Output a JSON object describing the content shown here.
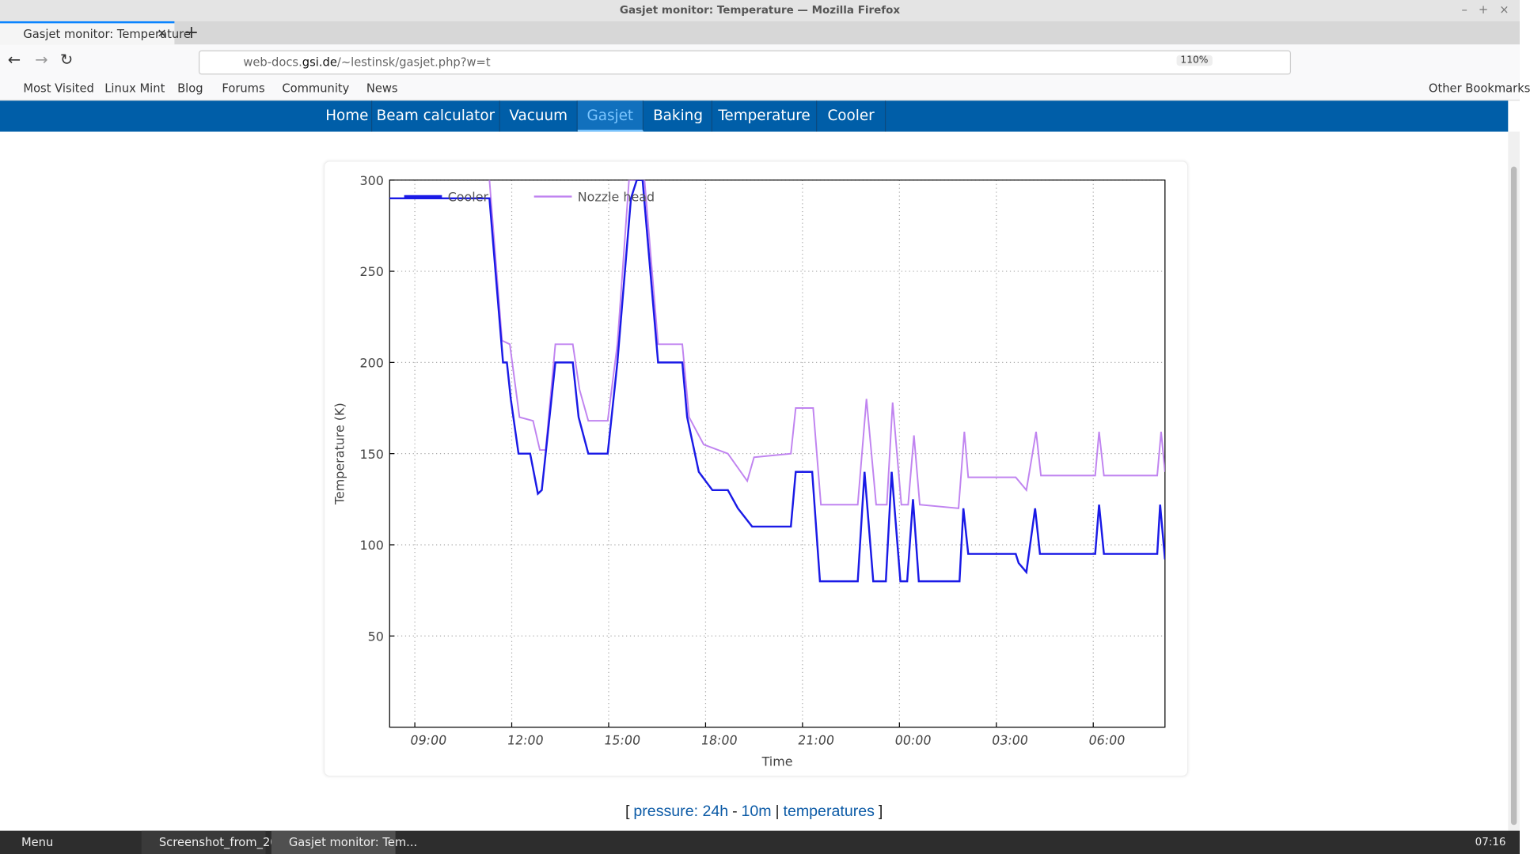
{
  "window_title": "Gasjet monitor: Temperature — Mozilla Firefox",
  "tab": {
    "title": "Gasjet monitor: Temperature"
  },
  "url": {
    "prefix": "web-docs.",
    "domain": "gsi.de",
    "path": "/~lestinsk/gasjet.php?w=t",
    "zoom": "110%"
  },
  "bookmarks": {
    "items": [
      "Most Visited",
      "Linux Mint",
      "Blog",
      "Forums",
      "Community",
      "News"
    ],
    "other": "Other Bookmarks"
  },
  "nav": [
    "Home",
    "Beam calculator",
    "Vacuum",
    "Gasjet",
    "Baking",
    "Temperature",
    "Cooler"
  ],
  "footer": [
    "[",
    "pressure: 24h",
    "-",
    "10m",
    "|",
    "temperatures",
    "]"
  ],
  "taskbar": {
    "menu": "Menu",
    "windows": [
      "Screenshot_from_20...",
      "Gasjet monitor: Tem..."
    ],
    "clock": "07:16"
  },
  "chart_data": {
    "type": "line",
    "xlabel": "Time",
    "ylabel": "Temperature (K)",
    "xlim": [
      8.22,
      32.22
    ],
    "ylim": [
      0,
      300
    ],
    "xticks": [
      {
        "value": 9,
        "label": "09:00"
      },
      {
        "value": 12,
        "label": "12:00"
      },
      {
        "value": 15,
        "label": "15:00"
      },
      {
        "value": 18,
        "label": "18:00"
      },
      {
        "value": 21,
        "label": "21:00"
      },
      {
        "value": 24,
        "label": "00:00"
      },
      {
        "value": 27,
        "label": "03:00"
      },
      {
        "value": 30,
        "label": "06:00"
      }
    ],
    "yticks": [
      50,
      100,
      150,
      200,
      250,
      300
    ],
    "grid": true,
    "legend": "upper left",
    "series": [
      {
        "name": "Cooler",
        "color": "#1a1ae6",
        "x": [
          8.22,
          11.31,
          11.73,
          11.85,
          11.97,
          12.21,
          12.57,
          12.81,
          12.93,
          13.35,
          13.89,
          14.07,
          14.37,
          14.97,
          15.27,
          15.69,
          15.87,
          16.05,
          16.53,
          17.28,
          17.43,
          17.79,
          18.21,
          18.69,
          19.0,
          19.44,
          20.64,
          20.79,
          21.3,
          21.54,
          22.71,
          22.92,
          23.19,
          23.58,
          23.76,
          24.03,
          24.24,
          24.42,
          24.6,
          25.86,
          25.98,
          26.13,
          27.6,
          27.69,
          27.93,
          28.2,
          28.35,
          30.06,
          30.18,
          30.33,
          31.98,
          32.07,
          32.22
        ],
        "values": [
          290,
          290,
          200,
          200,
          180,
          150,
          150,
          128,
          130,
          200,
          200,
          170,
          150,
          150,
          200,
          290,
          300,
          300,
          200,
          200,
          170,
          140,
          130,
          130,
          120,
          110,
          110,
          140,
          140,
          80,
          80,
          140,
          80,
          80,
          140,
          80,
          80,
          125,
          80,
          80,
          120,
          95,
          95,
          90,
          85,
          120,
          95,
          95,
          122,
          95,
          95,
          122,
          92
        ]
      },
      {
        "name": "Nozzle head",
        "color": "#c084f0",
        "x": [
          11.31,
          11.7,
          11.94,
          12.24,
          12.66,
          12.87,
          13.05,
          13.35,
          13.89,
          14.1,
          14.37,
          14.97,
          15.27,
          15.63,
          16.11,
          16.53,
          17.28,
          17.49,
          17.94,
          18.69,
          19.29,
          19.5,
          20.64,
          20.79,
          21.33,
          21.57,
          22.71,
          22.98,
          23.28,
          23.61,
          23.79,
          24.06,
          24.27,
          24.45,
          24.63,
          25.83,
          26.01,
          26.13,
          27.6,
          27.93,
          28.23,
          28.38,
          30.06,
          30.18,
          30.33,
          31.98,
          32.1,
          32.22
        ],
        "values": [
          300,
          212,
          210,
          170,
          168,
          152,
          152,
          210,
          210,
          185,
          168,
          168,
          210,
          300,
          300,
          210,
          210,
          170,
          155,
          150,
          135,
          148,
          150,
          175,
          175,
          122,
          122,
          180,
          122,
          122,
          178,
          122,
          122,
          160,
          122,
          120,
          162,
          137,
          137,
          130,
          162,
          138,
          138,
          162,
          138,
          138,
          162,
          140
        ]
      }
    ]
  }
}
